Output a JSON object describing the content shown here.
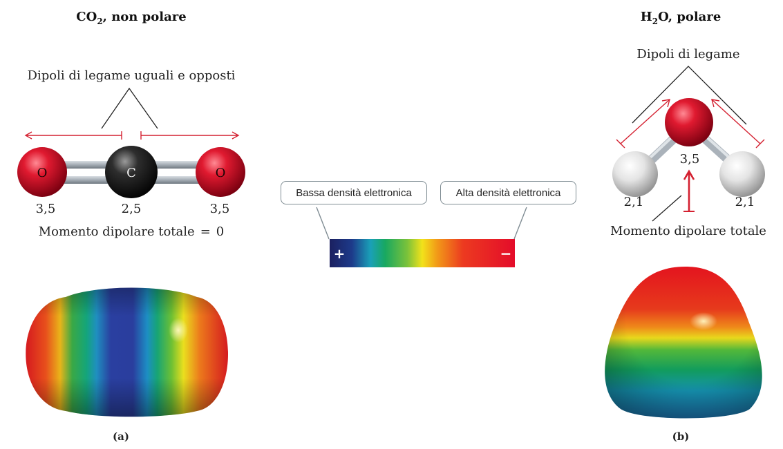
{
  "co2": {
    "title_formula": "CO",
    "title_sub": "2",
    "title_rest": ", non polare",
    "bond_dipoles_label": "Dipoli di legame uguali e opposti",
    "atom_left": "O",
    "atom_center": "C",
    "atom_right": "O",
    "en_left": "3,5",
    "en_center": "2,5",
    "en_right": "3,5",
    "total_moment_label": "Momento dipolare totale",
    "total_moment_eq": "=",
    "total_moment_value": "0",
    "panel_label": "(a)"
  },
  "h2o": {
    "title_h": "H",
    "title_sub": "2",
    "title_rest": "O, polare",
    "bond_dipoles_label": "Dipoli di legame",
    "en_oxygen": "3,5",
    "en_h_left": "2,1",
    "en_h_right": "2,1",
    "total_moment_label": "Momento dipolare totale",
    "panel_label": "(b)"
  },
  "scale": {
    "low_density_label": "Bassa densità elettronica",
    "high_density_label": "Alta densità elettronica",
    "plus_sign": "+",
    "minus_sign": "−"
  },
  "colors": {
    "oxygen": "#d0122a",
    "carbon": "#2a2a2a",
    "hydrogen": "#e6e6e6",
    "arrow": "#d42030",
    "low_density": "#1d2466",
    "high_density": "#e8102a"
  }
}
